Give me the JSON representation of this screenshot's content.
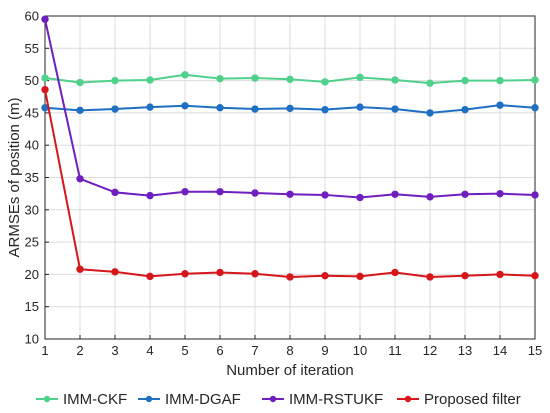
{
  "chart_data": {
    "type": "line",
    "xlabel": "Number of iteration",
    "ylabel": "ARMSEs of position (m)",
    "xlim": [
      1,
      15
    ],
    "ylim": [
      10,
      60
    ],
    "xticks": [
      1,
      2,
      3,
      4,
      5,
      6,
      7,
      8,
      9,
      10,
      11,
      12,
      13,
      14,
      15
    ],
    "yticks": [
      10,
      15,
      20,
      25,
      30,
      35,
      40,
      45,
      50,
      55,
      60
    ],
    "grid": true,
    "legend_position": "bottom",
    "x": [
      1,
      2,
      3,
      4,
      5,
      6,
      7,
      8,
      9,
      10,
      11,
      12,
      13,
      14,
      15
    ],
    "series": [
      {
        "name": "IMM-CKF",
        "color": "#4fd08b",
        "values": [
          50.4,
          49.7,
          50.0,
          50.1,
          50.9,
          50.3,
          50.4,
          50.2,
          49.8,
          50.5,
          50.1,
          49.6,
          50.0,
          50.0,
          50.1
        ]
      },
      {
        "name": "IMM-DGAF",
        "color": "#1f6fc2",
        "values": [
          45.8,
          45.4,
          45.6,
          45.9,
          46.1,
          45.8,
          45.6,
          45.7,
          45.5,
          45.9,
          45.6,
          45.0,
          45.5,
          46.2,
          45.8
        ]
      },
      {
        "name": "IMM-RSTUKF",
        "color": "#6f1fbf",
        "values": [
          59.5,
          34.8,
          32.7,
          32.2,
          32.8,
          32.8,
          32.6,
          32.4,
          32.3,
          31.9,
          32.4,
          32.0,
          32.4,
          32.5,
          32.3
        ]
      },
      {
        "name": "Proposed filter",
        "color": "#d6161b",
        "values": [
          48.6,
          20.8,
          20.4,
          19.7,
          20.1,
          20.3,
          20.1,
          19.6,
          19.8,
          19.7,
          20.3,
          19.6,
          19.8,
          20.0,
          19.8
        ]
      }
    ]
  }
}
